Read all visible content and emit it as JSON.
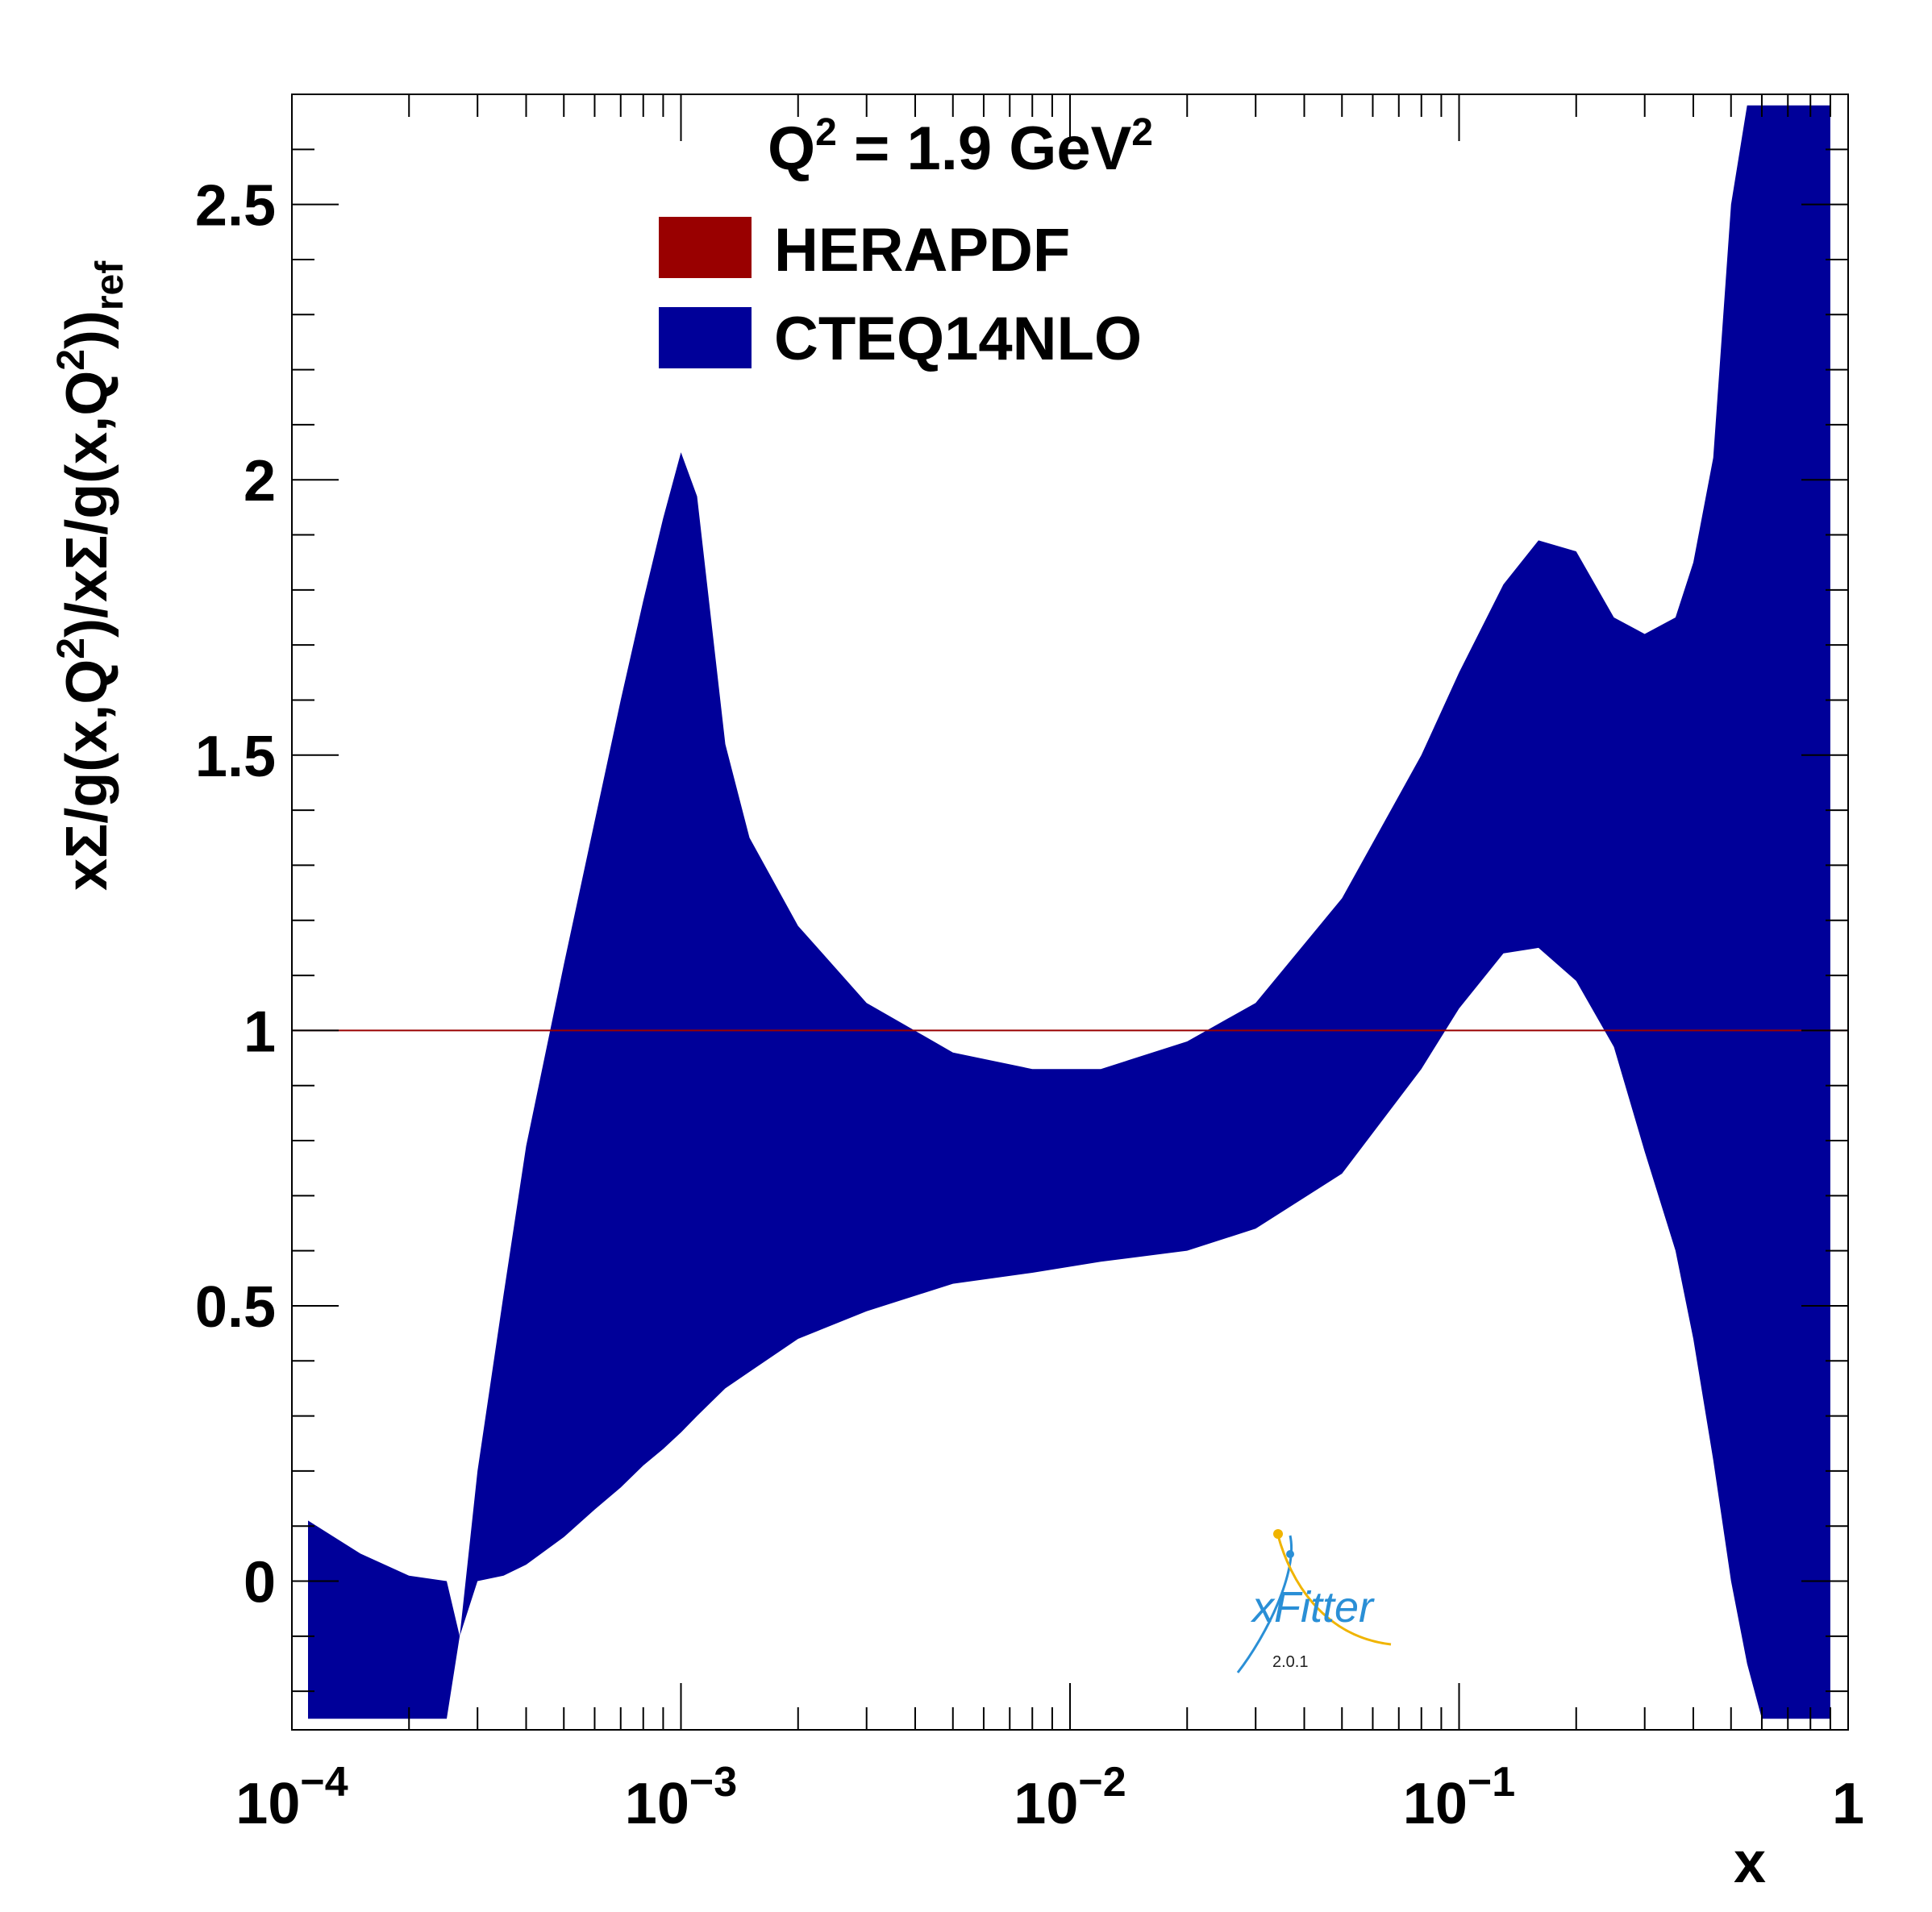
{
  "chart_data": {
    "type": "area",
    "x_scale": "log",
    "xlim": [
      0.0001,
      1
    ],
    "ylim": [
      -0.27,
      2.7
    ],
    "xlabel": "x",
    "ylabel_parts": {
      "main": "xΣ/g(x,Q",
      "sup1": "2",
      "mid": ")/xΣ/g(x,Q",
      "sup2": "2",
      "end": "))",
      "sub": "ref"
    },
    "x_ticks": [
      {
        "base": "10",
        "exp": "−4",
        "value": 0.0001
      },
      {
        "base": "10",
        "exp": "−3",
        "value": 0.001
      },
      {
        "base": "10",
        "exp": "−2",
        "value": 0.01
      },
      {
        "base": "10",
        "exp": "−1",
        "value": 0.1
      },
      {
        "base": "1",
        "exp": "",
        "value": 1
      }
    ],
    "y_ticks": [
      {
        "label": "0",
        "value": 0
      },
      {
        "label": "0.5",
        "value": 0.5
      },
      {
        "label": "1",
        "value": 1
      },
      {
        "label": "1.5",
        "value": 1.5
      },
      {
        "label": "2",
        "value": 2
      },
      {
        "label": "2.5",
        "value": 2.5
      }
    ],
    "annotation": {
      "q": "Q",
      "sup1": "2",
      "mid": " = 1.9 GeV",
      "sup2": "2"
    },
    "legend": [
      {
        "label": "HERAPDF",
        "color": "#990000"
      },
      {
        "label": "CTEQ14NLO",
        "color": "#000099"
      }
    ],
    "series": [
      {
        "name": "HERAPDF",
        "color": "#990000",
        "kind": "line",
        "x": [
          0.0001,
          1
        ],
        "y": [
          1,
          1
        ]
      },
      {
        "name": "CTEQ14NLO",
        "color": "#000099",
        "kind": "band",
        "x": [
          0.00011,
          0.00015,
          0.0002,
          0.00025,
          0.00027,
          0.0003,
          0.00035,
          0.0004,
          0.0005,
          0.0006,
          0.0007,
          0.0008,
          0.0009,
          0.001,
          0.0011,
          0.0013,
          0.0015,
          0.002,
          0.003,
          0.005,
          0.008,
          0.012,
          0.02,
          0.03,
          0.05,
          0.08,
          0.1,
          0.13,
          0.16,
          0.2,
          0.25,
          0.3,
          0.36,
          0.4,
          0.45,
          0.5,
          0.55,
          0.6,
          0.7,
          0.9
        ],
        "upper": [
          0.11,
          0.05,
          0.01,
          0.0,
          -0.1,
          0.2,
          0.52,
          0.79,
          1.12,
          1.38,
          1.6,
          1.78,
          1.93,
          2.05,
          1.97,
          1.52,
          1.35,
          1.19,
          1.05,
          0.96,
          0.93,
          0.93,
          0.98,
          1.05,
          1.24,
          1.5,
          1.65,
          1.81,
          1.89,
          1.87,
          1.75,
          1.72,
          1.75,
          1.85,
          2.04,
          2.5,
          2.68,
          2.68,
          2.68,
          2.68
        ],
        "lower": [
          -0.25,
          -0.25,
          -0.25,
          -0.25,
          -0.1,
          0.0,
          0.01,
          0.03,
          0.08,
          0.13,
          0.17,
          0.21,
          0.24,
          0.27,
          0.3,
          0.35,
          0.38,
          0.44,
          0.49,
          0.54,
          0.56,
          0.58,
          0.6,
          0.64,
          0.74,
          0.93,
          1.04,
          1.14,
          1.15,
          1.09,
          0.97,
          0.78,
          0.6,
          0.44,
          0.22,
          0.0,
          -0.15,
          -0.25,
          -0.25,
          -0.25
        ]
      }
    ]
  },
  "logo": {
    "text_x": "x",
    "text_rest": "Fitter",
    "version": "2.0.1",
    "color_blue": "#2a8fd6",
    "color_yellow": "#f0b400"
  }
}
